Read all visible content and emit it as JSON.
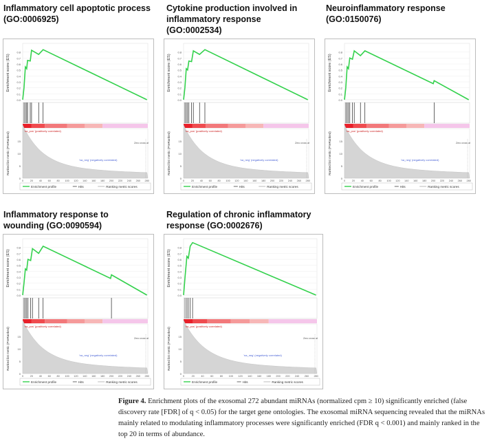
{
  "panels": [
    {
      "title_line1": "Inflammatory cell apoptotic process",
      "title_line2": "(GO:0006925)",
      "es_points": [
        [
          0,
          0
        ],
        [
          3,
          0.2
        ],
        [
          6,
          0.55
        ],
        [
          9,
          0.52
        ],
        [
          11,
          0.66
        ],
        [
          17,
          0.65
        ],
        [
          20,
          0.83
        ],
        [
          36,
          0.76
        ],
        [
          46,
          0.84
        ],
        [
          280,
          0.0
        ]
      ],
      "hits": [
        3,
        6,
        9,
        11,
        17,
        20,
        36,
        46
      ]
    },
    {
      "title_line1": "Cytokine production involved in",
      "title_line2": "inflammatory response",
      "title_line3": "(GO:0002534)",
      "es_points": [
        [
          0,
          0
        ],
        [
          3,
          0.2
        ],
        [
          6,
          0.52
        ],
        [
          9,
          0.5
        ],
        [
          12,
          0.65
        ],
        [
          18,
          0.64
        ],
        [
          22,
          0.82
        ],
        [
          36,
          0.76
        ],
        [
          48,
          0.84
        ],
        [
          280,
          0.0
        ]
      ],
      "hits": [
        3,
        6,
        9,
        12,
        18,
        22,
        36,
        48
      ]
    },
    {
      "title_line1": "Neuroinflammatory response",
      "title_line2": "(GO:0150076)",
      "es_points": [
        [
          0,
          0
        ],
        [
          3,
          0.2
        ],
        [
          6,
          0.55
        ],
        [
          9,
          0.52
        ],
        [
          12,
          0.7
        ],
        [
          18,
          0.68
        ],
        [
          22,
          0.82
        ],
        [
          36,
          0.74
        ],
        [
          46,
          0.82
        ],
        [
          200,
          0.27
        ],
        [
          202,
          0.32
        ],
        [
          280,
          0.0
        ]
      ],
      "hits": [
        3,
        6,
        9,
        12,
        18,
        22,
        36,
        46,
        202
      ]
    },
    {
      "title_line1": "Inflammatory response to",
      "title_line2": "wounding (GO:0090594)",
      "es_points": [
        [
          0,
          0
        ],
        [
          3,
          0.2
        ],
        [
          6,
          0.44
        ],
        [
          9,
          0.42
        ],
        [
          12,
          0.6
        ],
        [
          18,
          0.58
        ],
        [
          22,
          0.78
        ],
        [
          36,
          0.7
        ],
        [
          46,
          0.82
        ],
        [
          198,
          0.28
        ],
        [
          200,
          0.34
        ],
        [
          280,
          0.0
        ]
      ],
      "hits": [
        3,
        6,
        9,
        12,
        18,
        22,
        36,
        46,
        200
      ]
    },
    {
      "title_line1": "Regulation of chronic inflammatory",
      "title_line2": "response (GO:0002676)",
      "es_points": [
        [
          0,
          0
        ],
        [
          3,
          0.3
        ],
        [
          7,
          0.65
        ],
        [
          10,
          0.62
        ],
        [
          14,
          0.82
        ],
        [
          19,
          0.88
        ],
        [
          280,
          0.0
        ]
      ],
      "hits": [
        3,
        7,
        10,
        14,
        19
      ]
    }
  ],
  "plot_labels": {
    "es_axis": "Enrichment score (ES)",
    "rank_axis": "Ranked list metric (PreRanked)",
    "x_axis": "Rank in Ordered Dataset",
    "pos_label": "'na_pos' (positively correlated)",
    "neg_label": "'na_neg' (negatively correlated)",
    "zero_cross": "Zero cross at",
    "legend_enrichment": "Enrichment profile",
    "legend_hits": "Hits",
    "legend_ranking": "Ranking metric scores",
    "es_ticks": [
      "0.8",
      "0.7",
      "0.6",
      "0.5",
      "0.4",
      "0.3",
      "0.2",
      "0.1",
      "0.0"
    ],
    "rank_ticks": [
      "15",
      "10",
      "5",
      "0"
    ],
    "x_ticks": [
      "0",
      "20",
      "40",
      "60",
      "80",
      "100",
      "120",
      "140",
      "160",
      "180",
      "200",
      "220",
      "240",
      "260",
      "280"
    ]
  },
  "colors": {
    "es_line": "#33d14c",
    "hit": "#222222",
    "neg_text": "#4a63d6",
    "pos_text": "#cc2222"
  },
  "caption": {
    "figure_label": "Figure 4.",
    "text": " Enrichment plots of the exosomal 272 abundant miRNAs (normalized cpm ≥ 10) significantly enriched (false discovery rate [FDR] of q < 0.05) for the target gene ontologies. The exosomal miRNA sequencing revealed that the miRNAs mainly related to modulating inflammatory processes were significantly enriched (FDR q < 0.001) and mainly ranked in the top 20 in terms of abundance."
  }
}
